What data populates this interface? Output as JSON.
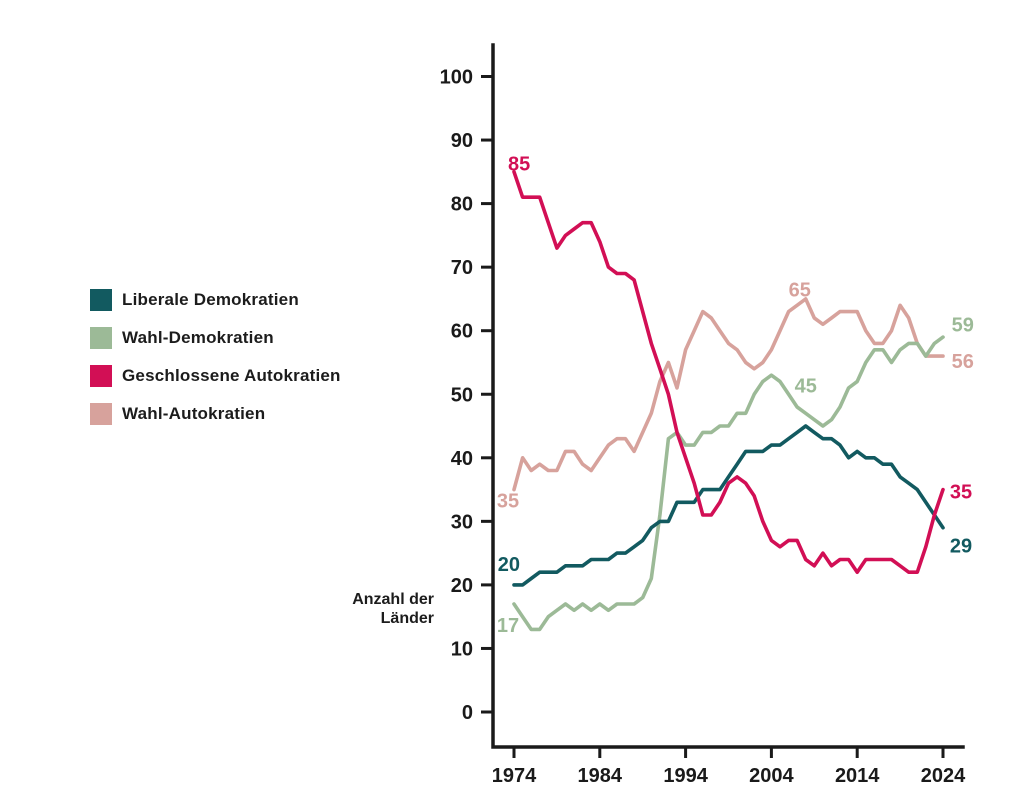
{
  "page": {
    "background": "#ffffff",
    "text_color": "#1a1a1a"
  },
  "axis_label": {
    "line1": "Anzahl der",
    "line2": "Länder"
  },
  "legend": [
    {
      "key": "liberal",
      "label": "Liberale Demokratien",
      "color": "#125a60"
    },
    {
      "key": "wahldem",
      "label": "Wahl-Demokratien",
      "color": "#9cba97"
    },
    {
      "key": "geschlossene",
      "label": "Geschlossene Autokratien",
      "color": "#d20f55"
    },
    {
      "key": "wahlaut",
      "label": "Wahl-Autokratien",
      "color": "#d7a29c"
    }
  ],
  "chart_data": {
    "type": "line",
    "title": "",
    "xlabel": "",
    "ylabel": "Anzahl der Länder",
    "grid": false,
    "legend_position": "left",
    "xlim": [
      1971,
      2027
    ],
    "ylim": [
      0,
      105
    ],
    "xticks": [
      1974,
      1984,
      1994,
      2004,
      2014,
      2024
    ],
    "yticks": [
      0,
      10,
      20,
      30,
      40,
      50,
      60,
      70,
      80,
      90,
      100
    ],
    "x": [
      1974,
      1975,
      1976,
      1977,
      1978,
      1979,
      1980,
      1981,
      1982,
      1983,
      1984,
      1985,
      1986,
      1987,
      1988,
      1989,
      1990,
      1991,
      1992,
      1993,
      1994,
      1995,
      1996,
      1997,
      1998,
      1999,
      2000,
      2001,
      2002,
      2003,
      2004,
      2005,
      2006,
      2007,
      2008,
      2009,
      2010,
      2011,
      2012,
      2013,
      2014,
      2015,
      2016,
      2017,
      2018,
      2019,
      2020,
      2021,
      2022,
      2023,
      2024
    ],
    "series": [
      {
        "key": "liberal",
        "name": "Liberale Demokratien",
        "color": "#125a60",
        "start_label": "20",
        "end_label": "29",
        "values": [
          20,
          20,
          21,
          22,
          22,
          22,
          23,
          23,
          23,
          24,
          24,
          24,
          25,
          25,
          26,
          27,
          29,
          30,
          30,
          33,
          33,
          33,
          35,
          35,
          35,
          37,
          39,
          41,
          41,
          41,
          42,
          42,
          43,
          44,
          45,
          44,
          43,
          43,
          42,
          40,
          41,
          40,
          40,
          39,
          39,
          37,
          36,
          35,
          33,
          31,
          29
        ]
      },
      {
        "key": "wahldem",
        "name": "Wahl-Demokratien",
        "color": "#9cba97",
        "start_label": "17",
        "end_label": "59",
        "values": [
          17,
          15,
          13,
          13,
          15,
          16,
          17,
          16,
          17,
          16,
          17,
          16,
          17,
          17,
          17,
          18,
          21,
          31,
          43,
          44,
          42,
          42,
          44,
          44,
          45,
          45,
          47,
          47,
          50,
          52,
          53,
          52,
          50,
          48,
          47,
          46,
          45,
          46,
          48,
          51,
          52,
          55,
          57,
          57,
          55,
          57,
          58,
          58,
          56,
          58,
          59
        ]
      },
      {
        "key": "geschlossene",
        "name": "Geschlossene Autokratien",
        "color": "#d20f55",
        "start_label": "85",
        "end_label": "35",
        "values": [
          85,
          81,
          81,
          81,
          77,
          73,
          75,
          76,
          77,
          77,
          74,
          70,
          69,
          69,
          68,
          63,
          58,
          54,
          50,
          44,
          40,
          36,
          31,
          31,
          33,
          36,
          37,
          36,
          34,
          30,
          27,
          26,
          27,
          27,
          24,
          23,
          25,
          23,
          24,
          24,
          22,
          24,
          24,
          24,
          24,
          23,
          22,
          22,
          26,
          31,
          35
        ]
      },
      {
        "key": "wahlaut",
        "name": "Wahl-Autokratien",
        "color": "#d7a29c",
        "start_label": "35",
        "end_label": "56",
        "values": [
          35,
          40,
          38,
          39,
          38,
          38,
          41,
          41,
          39,
          38,
          40,
          42,
          43,
          43,
          41,
          44,
          47,
          52,
          55,
          51,
          57,
          60,
          63,
          62,
          60,
          58,
          57,
          55,
          54,
          55,
          57,
          60,
          63,
          64,
          65,
          62,
          61,
          62,
          63,
          63,
          63,
          60,
          58,
          58,
          60,
          64,
          62,
          58,
          56,
          56,
          56
        ]
      }
    ],
    "annotations": [
      {
        "series": "geschlossene",
        "text": "85",
        "year": 1974.6,
        "value": 86.3
      },
      {
        "series": "wahlaut",
        "text": "35",
        "year": 1973.3,
        "value": 33.3
      },
      {
        "series": "liberal",
        "text": "20",
        "year": 1973.4,
        "value": 23.3
      },
      {
        "series": "wahldem",
        "text": "17",
        "year": 1973.3,
        "value": 13.7
      },
      {
        "series": "wahlaut",
        "text": "65",
        "year": 2007.3,
        "value": 66.5
      },
      {
        "series": "wahldem",
        "text": "45",
        "year": 2008.0,
        "value": 51.4
      },
      {
        "series": "wahldem",
        "text": "59",
        "year": 2026.3,
        "value": 61.0
      },
      {
        "series": "wahlaut",
        "text": "56",
        "year": 2026.3,
        "value": 55.2
      },
      {
        "series": "geschlossene",
        "text": "35",
        "year": 2026.1,
        "value": 34.7
      },
      {
        "series": "liberal",
        "text": "29",
        "year": 2026.1,
        "value": 26.2
      }
    ]
  }
}
